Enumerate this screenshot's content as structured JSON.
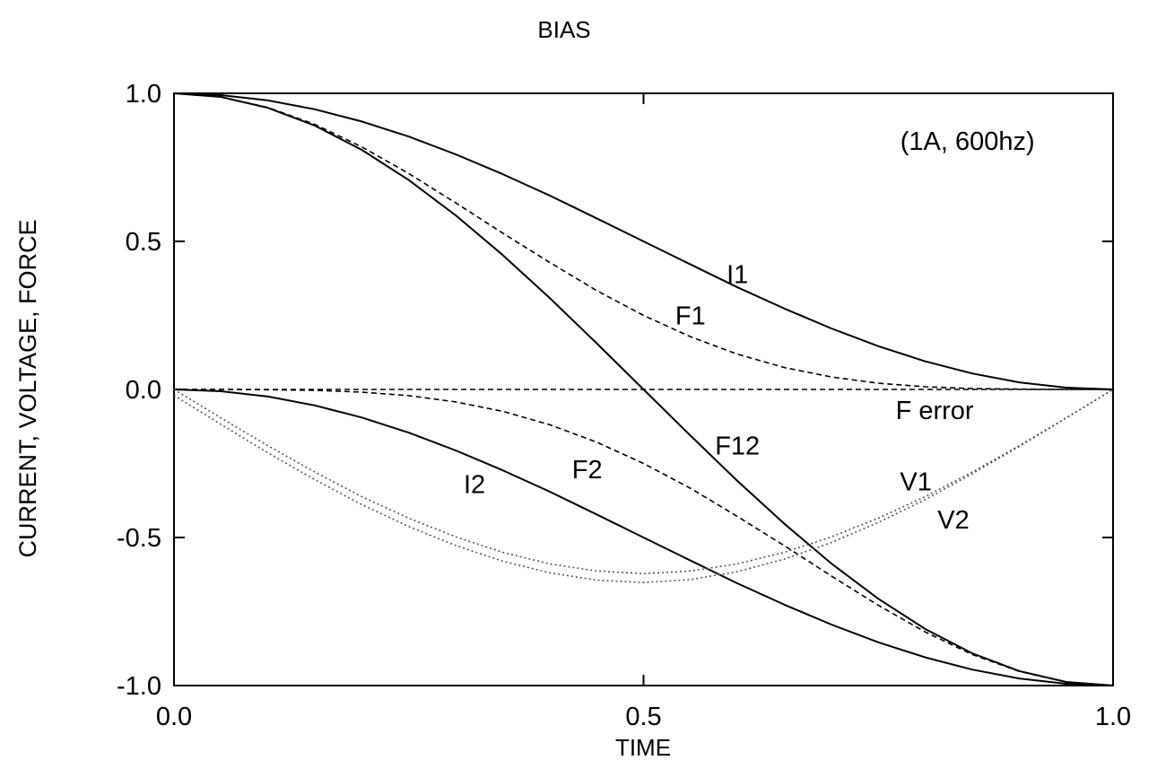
{
  "chart_data": {
    "type": "line",
    "title": "BIAS",
    "xlabel": "TIME",
    "ylabel": "CURRENT, VOLTAGE, FORCE",
    "xlim": [
      0,
      1
    ],
    "ylim": [
      -1,
      1
    ],
    "xticks": [
      0,
      0.5,
      1
    ],
    "xtick_labels": [
      "0.0",
      "0.5",
      "1.0"
    ],
    "yticks": [
      -1,
      -0.5,
      0,
      0.5,
      1
    ],
    "ytick_labels": [
      "-1.0",
      "-0.5",
      "0.0",
      "0.5",
      "1.0"
    ],
    "grid": false,
    "legend": "none",
    "annotations": [
      {
        "text": "(1A, 600hz)",
        "x": 0.845,
        "y": 0.84
      },
      {
        "text": "I1",
        "x": 0.6,
        "y": 0.39
      },
      {
        "text": "F1",
        "x": 0.55,
        "y": 0.25
      },
      {
        "text": "F error",
        "x": 0.81,
        "y": -0.07
      },
      {
        "text": "F12",
        "x": 0.6,
        "y": -0.19
      },
      {
        "text": "F2",
        "x": 0.44,
        "y": -0.27
      },
      {
        "text": "I2",
        "x": 0.32,
        "y": -0.32
      },
      {
        "text": "V1",
        "x": 0.79,
        "y": -0.31
      },
      {
        "text": "V2",
        "x": 0.83,
        "y": -0.44
      }
    ],
    "x": [
      0,
      0.05,
      0.1,
      0.15,
      0.2,
      0.25,
      0.3,
      0.35,
      0.4,
      0.45,
      0.5,
      0.55,
      0.6,
      0.65,
      0.7,
      0.75,
      0.8,
      0.85,
      0.9,
      0.95,
      1
    ],
    "series": [
      {
        "name": "I1",
        "style": "solid",
        "values": [
          1.0,
          0.994,
          0.976,
          0.946,
          0.905,
          0.854,
          0.794,
          0.727,
          0.655,
          0.578,
          0.5,
          0.422,
          0.345,
          0.273,
          0.206,
          0.146,
          0.095,
          0.054,
          0.024,
          0.006,
          0.0
        ]
      },
      {
        "name": "F1",
        "style": "dashed",
        "values": [
          1.0,
          0.988,
          0.952,
          0.895,
          0.819,
          0.729,
          0.63,
          0.528,
          0.429,
          0.334,
          0.25,
          0.178,
          0.119,
          0.074,
          0.042,
          0.021,
          0.009,
          0.003,
          0.001,
          0.0,
          0.0
        ]
      },
      {
        "name": "F12",
        "style": "solid",
        "values": [
          1.0,
          0.988,
          0.951,
          0.891,
          0.809,
          0.707,
          0.588,
          0.454,
          0.309,
          0.156,
          0.0,
          -0.156,
          -0.309,
          -0.454,
          -0.588,
          -0.707,
          -0.809,
          -0.891,
          -0.951,
          -0.988,
          -1.0
        ]
      },
      {
        "name": "F error",
        "style": "dashed",
        "values": [
          0,
          0,
          0,
          0,
          0,
          0,
          0,
          0,
          0,
          0,
          0,
          0,
          0,
          0,
          0,
          0,
          0,
          0,
          0,
          0,
          0
        ]
      },
      {
        "name": "I2",
        "style": "solid",
        "values": [
          0.0,
          -0.006,
          -0.024,
          -0.054,
          -0.095,
          -0.146,
          -0.206,
          -0.273,
          -0.345,
          -0.422,
          -0.5,
          -0.578,
          -0.655,
          -0.727,
          -0.794,
          -0.854,
          -0.905,
          -0.946,
          -0.976,
          -0.994,
          -1.0
        ]
      },
      {
        "name": "F2",
        "style": "dashed",
        "values": [
          0.0,
          0.0,
          -0.001,
          -0.003,
          -0.009,
          -0.021,
          -0.042,
          -0.074,
          -0.119,
          -0.178,
          -0.25,
          -0.334,
          -0.429,
          -0.528,
          -0.63,
          -0.729,
          -0.819,
          -0.895,
          -0.952,
          -0.988,
          -1.0
        ]
      },
      {
        "name": "V1",
        "style": "dotted",
        "values": [
          0.0,
          -0.096,
          -0.19,
          -0.279,
          -0.362,
          -0.435,
          -0.498,
          -0.55,
          -0.589,
          -0.613,
          -0.622,
          -0.613,
          -0.589,
          -0.55,
          -0.498,
          -0.435,
          -0.362,
          -0.279,
          -0.19,
          -0.096,
          0.0
        ]
      },
      {
        "name": "V2",
        "style": "dotted",
        "values": [
          -0.02,
          -0.118,
          -0.214,
          -0.305,
          -0.389,
          -0.463,
          -0.527,
          -0.58,
          -0.619,
          -0.644,
          -0.652,
          -0.642,
          -0.615,
          -0.573,
          -0.517,
          -0.449,
          -0.372,
          -0.285,
          -0.193,
          -0.097,
          0.0
        ]
      }
    ]
  }
}
